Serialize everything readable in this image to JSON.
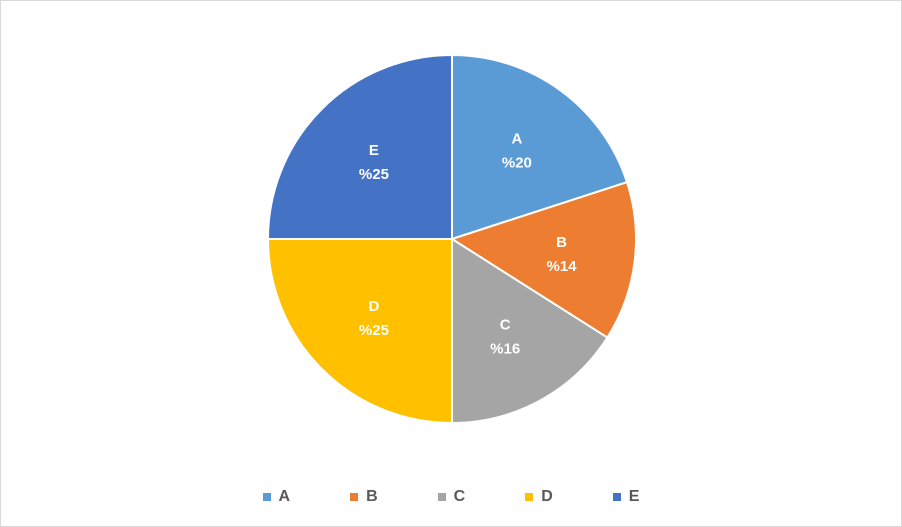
{
  "chart_data": {
    "type": "pie",
    "categories": [
      "A",
      "B",
      "C",
      "D",
      "E"
    ],
    "values": [
      20,
      14,
      16,
      25,
      25
    ],
    "value_labels": [
      "%20",
      "%14",
      "%16",
      "%25",
      "%25"
    ],
    "colors": [
      "#5B9BD5",
      "#ED7D31",
      "#A5A5A5",
      "#FFC000",
      "#4472C4"
    ],
    "start": "12 o'clock",
    "direction": "clockwise",
    "legend_position": "bottom",
    "title": ""
  },
  "legend": {
    "items": [
      {
        "label": "A",
        "color": "#5B9BD5"
      },
      {
        "label": "B",
        "color": "#ED7D31"
      },
      {
        "label": "C",
        "color": "#A5A5A5"
      },
      {
        "label": "D",
        "color": "#FFC000"
      },
      {
        "label": "E",
        "color": "#4472C4"
      }
    ]
  }
}
